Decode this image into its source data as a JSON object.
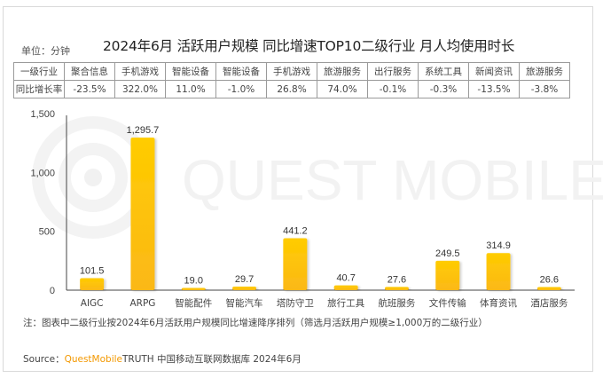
{
  "header": {
    "unit": "单位：分钟",
    "title": "2024年6月 活跃用户规模 同比增速TOP10二级行业 月人均使用时长"
  },
  "table": {
    "row_headers": [
      "一级行业",
      "同比增长率"
    ],
    "industries": [
      "聚合信息",
      "手机游戏",
      "智能设备",
      "智能设备",
      "手机游戏",
      "旅游服务",
      "出行服务",
      "系统工具",
      "新闻资讯",
      "旅游服务"
    ],
    "growth": [
      "-23.5%",
      "322.0%",
      "11.0%",
      "-1.0%",
      "26.8%",
      "74.0%",
      "-0.1%",
      "-0.3%",
      "-13.5%",
      "-3.8%"
    ]
  },
  "watermark": "QUEST MOBILE",
  "chart_data": {
    "type": "bar",
    "title": "2024年6月 活跃用户规模 同比增速TOP10二级行业 月人均使用时长",
    "xlabel": "",
    "ylabel": "单位：分钟",
    "categories": [
      "AIGC",
      "ARPG",
      "智能配件",
      "智能汽车",
      "塔防守卫",
      "旅行工具",
      "航班服务",
      "文件传输",
      "体育资讯",
      "酒店服务"
    ],
    "values": [
      101.5,
      1295.7,
      19.0,
      29.7,
      441.2,
      40.7,
      27.6,
      249.5,
      314.9,
      26.6
    ],
    "value_labels": [
      "101.5",
      "1,295.7",
      "19.0",
      "29.7",
      "441.2",
      "40.7",
      "27.6",
      "249.5",
      "314.9",
      "26.6"
    ],
    "ylim": [
      0,
      1500
    ],
    "yticks": [
      0,
      500,
      1000,
      1500
    ],
    "ytick_labels": [
      "0",
      "500",
      "1,000",
      "1,500"
    ],
    "grid": false,
    "legend": "none",
    "bar_color_top": "#ffcc00",
    "bar_color_bottom": "#fbb817"
  },
  "footer": {
    "note": "注：图表中二级行业按2024年6月活跃用户规模同比增速降序排列（筛选月活跃用户规模≥1,000万的二级行业）",
    "source_prefix": "Source：",
    "source_brand": "QuestMobile",
    "source_rest": "TRUTH 中国移动互联网数据库 2024年6月"
  }
}
